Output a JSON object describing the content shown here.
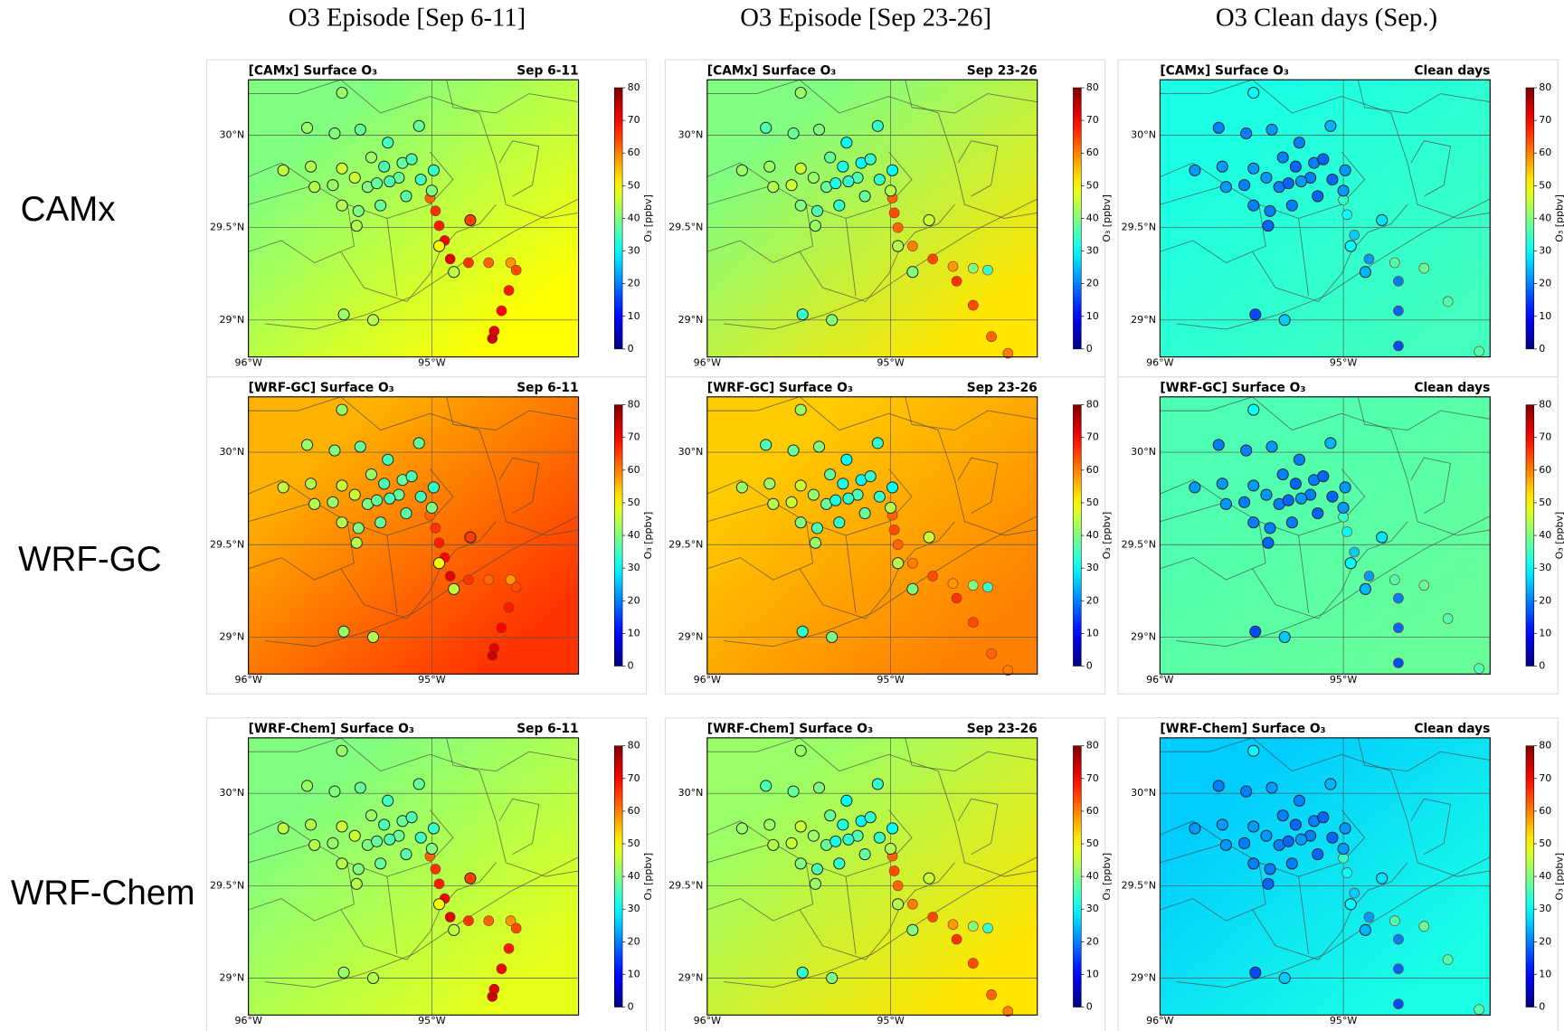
{
  "columns": [
    {
      "title": "O3 Episode [Sep 6-11]",
      "panel_label": "Sep 6-11",
      "site_values": [
        42,
        42,
        40,
        38,
        35,
        38,
        45,
        44,
        46,
        42,
        36,
        38,
        36,
        38,
        35,
        34,
        44,
        42,
        46,
        40,
        38,
        36,
        44,
        40,
        38,
        37,
        40,
        44,
        50,
        45,
        65,
        42,
        44
      ],
      "track": {
        "lon": [
          -95.01,
          -94.98,
          -94.96,
          -94.93,
          -94.9,
          -94.8,
          -94.69,
          -94.57,
          -94.54,
          -94.58,
          -94.62,
          -94.66,
          -94.67
        ],
        "lat": [
          29.66,
          29.59,
          29.51,
          29.43,
          29.33,
          29.31,
          29.31,
          29.31,
          29.27,
          29.16,
          29.05,
          28.94,
          28.9
        ],
        "values": [
          62,
          66,
          68,
          70,
          72,
          66,
          62,
          58,
          64,
          68,
          70,
          72,
          74
        ]
      }
    },
    {
      "title": "O3 Episode [Sep 23-26]",
      "panel_label": "Sep 23-26",
      "site_values": [
        42,
        36,
        38,
        40,
        30,
        34,
        42,
        42,
        46,
        38,
        32,
        30,
        34,
        36,
        34,
        30,
        44,
        46,
        42,
        38,
        32,
        34,
        40,
        36,
        34,
        38,
        44,
        42,
        44,
        40,
        46,
        34,
        40
      ],
      "track": {
        "lon": [
          -94.99,
          -94.98,
          -94.96,
          -94.88,
          -94.77,
          -94.66,
          -94.55,
          -94.47,
          -94.64,
          -94.55,
          -94.45,
          -94.36
        ],
        "lat": [
          29.66,
          29.58,
          29.5,
          29.4,
          29.33,
          29.29,
          29.28,
          29.27,
          29.21,
          29.08,
          28.91,
          28.82
        ],
        "values": [
          62,
          64,
          62,
          60,
          64,
          58,
          40,
          34,
          66,
          64,
          62,
          60
        ]
      }
    },
    {
      "title": "O3 Clean days (Sep.)",
      "panel_label": "Clean days",
      "site_values": [
        30,
        20,
        20,
        22,
        20,
        24,
        22,
        22,
        22,
        20,
        18,
        20,
        18,
        20,
        18,
        22,
        22,
        20,
        22,
        20,
        18,
        22,
        20,
        20,
        20,
        18,
        22,
        18,
        30,
        24,
        28,
        16,
        26
      ],
      "track": {
        "lon": [
          -95.0,
          -94.98,
          -94.94,
          -94.86,
          -94.72,
          -94.56,
          -94.7,
          -94.7,
          -94.7,
          -94.43,
          -94.26
        ],
        "lat": [
          29.65,
          29.57,
          29.46,
          29.33,
          29.31,
          29.28,
          29.21,
          29.05,
          28.86,
          29.1,
          28.83
        ],
        "values": [
          34,
          30,
          26,
          22,
          36,
          38,
          20,
          18,
          16,
          36,
          36
        ]
      }
    }
  ],
  "rows": [
    {
      "label": "CAMx",
      "panel_title": "[CAMx] Surface O₃",
      "fields": [
        [
          40,
          50
        ],
        [
          40,
          52
        ],
        [
          32,
          35
        ]
      ]
    },
    {
      "label": "WRF-GC",
      "panel_title": "[WRF-GC] Surface O₃",
      "fields": [
        [
          56,
          66
        ],
        [
          54,
          60
        ],
        [
          36,
          38
        ]
      ]
    },
    {
      "label": "WRF-Chem",
      "panel_title": "[WRF-Chem] Surface O₃",
      "fields": [
        [
          40,
          48
        ],
        [
          42,
          52
        ],
        [
          26,
          32
        ]
      ]
    }
  ],
  "map": {
    "xlim": [
      -96,
      -94.2
    ],
    "ylim": [
      28.8,
      30.3
    ],
    "xticks": [
      {
        "value": -96,
        "label": "96°W"
      },
      {
        "value": -95,
        "label": "95°W"
      }
    ],
    "yticks": [
      {
        "value": 29,
        "label": "29°N"
      },
      {
        "value": 29.5,
        "label": "29.5°N"
      },
      {
        "value": 30,
        "label": "30°N"
      }
    ]
  },
  "colorbar": {
    "lim": [
      0,
      80
    ],
    "ticks": [
      0,
      10,
      20,
      30,
      40,
      50,
      60,
      70,
      80
    ],
    "label": "O₃ [ppbv]",
    "colormap": "jet"
  },
  "sites": {
    "lon": [
      -95.49,
      -95.68,
      -95.53,
      -95.39,
      -95.24,
      -95.07,
      -95.81,
      -95.66,
      -95.49,
      -95.33,
      -95.26,
      -95.16,
      -95.11,
      -95.18,
      -95.06,
      -94.99,
      -95.64,
      -95.54,
      -95.42,
      -95.35,
      -95.3,
      -95.23,
      -95.49,
      -95.4,
      -95.28,
      -95.14,
      -95.0,
      -95.41,
      -94.96,
      -94.88,
      -94.79,
      -95.48,
      -95.32
    ],
    "lat": [
      30.23,
      30.04,
      30.01,
      30.03,
      29.96,
      30.05,
      29.81,
      29.83,
      29.82,
      29.88,
      29.83,
      29.85,
      29.87,
      29.77,
      29.76,
      29.81,
      29.72,
      29.73,
      29.77,
      29.72,
      29.74,
      29.75,
      29.62,
      29.59,
      29.62,
      29.67,
      29.7,
      29.51,
      29.4,
      29.26,
      29.54,
      29.03,
      29.0
    ]
  }
}
